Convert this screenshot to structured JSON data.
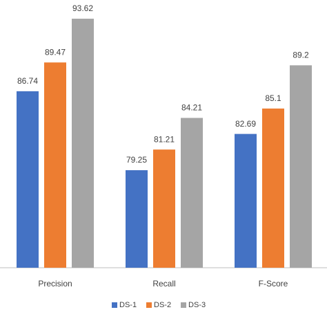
{
  "chart_data": {
    "type": "bar",
    "categories": [
      "Precision",
      "Recall",
      "F-Score"
    ],
    "series": [
      {
        "name": "DS-1",
        "color": "#4472c4",
        "values": [
          86.74,
          79.25,
          82.69
        ]
      },
      {
        "name": "DS-2",
        "color": "#ed7d31",
        "values": [
          89.47,
          81.21,
          85.1
        ]
      },
      {
        "name": "DS-3",
        "color": "#a5a5a5",
        "values": [
          93.62,
          84.21,
          89.2
        ]
      }
    ],
    "ylim": [
      70,
      95
    ],
    "legend": "bottom"
  }
}
